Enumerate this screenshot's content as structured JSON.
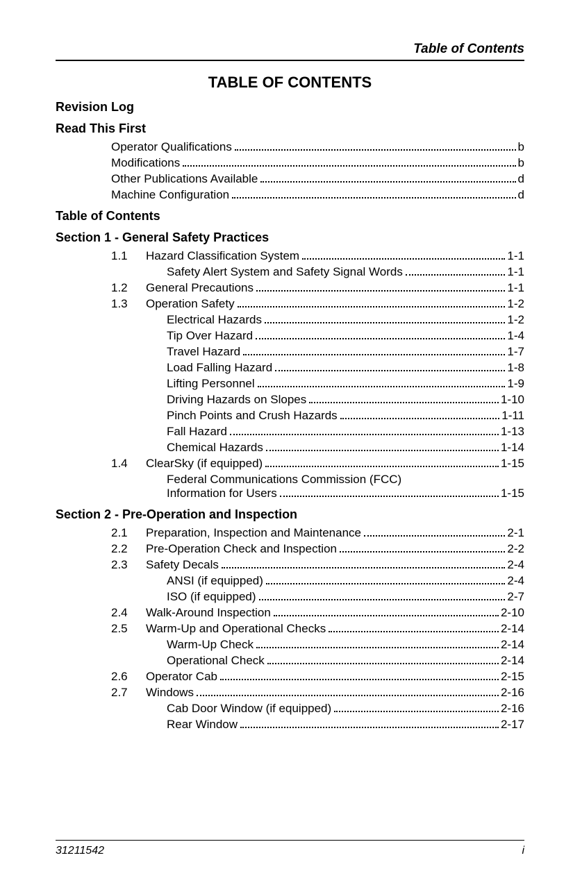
{
  "header": {
    "title": "Table of Contents"
  },
  "main_title": "TABLE OF CONTENTS",
  "sections": {
    "revision_log": "Revision Log",
    "read_first": "Read This First",
    "read_first_items": [
      {
        "label": "Operator Qualifications",
        "page": "b"
      },
      {
        "label": "Modifications",
        "page": "b"
      },
      {
        "label": "Other Publications Available",
        "page": "d"
      },
      {
        "label": "Machine Configuration",
        "page": "d"
      }
    ],
    "toc": "Table of Contents",
    "section1": "Section 1 - General Safety Practices",
    "section1_items": [
      {
        "num": "1.1",
        "label": "Hazard Classification System",
        "page": "1-1"
      },
      {
        "sub": true,
        "label": "Safety Alert System and Safety Signal Words",
        "page": "1-1"
      },
      {
        "num": "1.2",
        "label": "General Precautions",
        "page": "1-1"
      },
      {
        "num": "1.3",
        "label": "Operation Safety",
        "page": "1-2"
      },
      {
        "sub": true,
        "label": "Electrical Hazards",
        "page": "1-2"
      },
      {
        "sub": true,
        "label": "Tip Over Hazard",
        "page": "1-4"
      },
      {
        "sub": true,
        "label": "Travel Hazard",
        "page": "1-7"
      },
      {
        "sub": true,
        "label": "Load Falling Hazard",
        "page": "1-8"
      },
      {
        "sub": true,
        "label": "Lifting Personnel",
        "page": "1-9"
      },
      {
        "sub": true,
        "label": "Driving Hazards on Slopes",
        "page": "1-10"
      },
      {
        "sub": true,
        "label": "Pinch Points and Crush Hazards",
        "page": "1-11"
      },
      {
        "sub": true,
        "label": "Fall Hazard",
        "page": "1-13"
      },
      {
        "sub": true,
        "label": "Chemical Hazards",
        "page": "1-14"
      },
      {
        "num": "1.4",
        "label": "ClearSky (if equipped)",
        "page": "1-15"
      },
      {
        "sub": true,
        "multiline": true,
        "line1": "Federal Communications Commission (FCC)",
        "line2": "Information for Users",
        "page": "1-15"
      }
    ],
    "section2": "Section 2 - Pre-Operation and Inspection",
    "section2_items": [
      {
        "num": "2.1",
        "label": "Preparation, Inspection and Maintenance",
        "page": "2-1"
      },
      {
        "num": "2.2",
        "label": "Pre-Operation Check and Inspection",
        "page": "2-2"
      },
      {
        "num": "2.3",
        "label": "Safety Decals",
        "page": "2-4"
      },
      {
        "sub": true,
        "label": "ANSI (if equipped)",
        "page": "2-4"
      },
      {
        "sub": true,
        "label": "ISO (if equipped)",
        "page": "2-7"
      },
      {
        "num": "2.4",
        "label": "Walk-Around Inspection",
        "page": "2-10"
      },
      {
        "num": "2.5",
        "label": "Warm-Up and Operational Checks",
        "page": "2-14"
      },
      {
        "sub": true,
        "label": "Warm-Up Check",
        "page": "2-14"
      },
      {
        "sub": true,
        "label": "Operational Check",
        "page": "2-14"
      },
      {
        "num": "2.6",
        "label": "Operator Cab",
        "page": "2-15"
      },
      {
        "num": "2.7",
        "label": "Windows",
        "page": "2-16"
      },
      {
        "sub": true,
        "label": "Cab Door Window (if equipped)",
        "page": "2-16"
      },
      {
        "sub": true,
        "label": "Rear Window",
        "page": "2-17"
      }
    ]
  },
  "footer": {
    "doc_number": "31211542",
    "page": "i"
  }
}
